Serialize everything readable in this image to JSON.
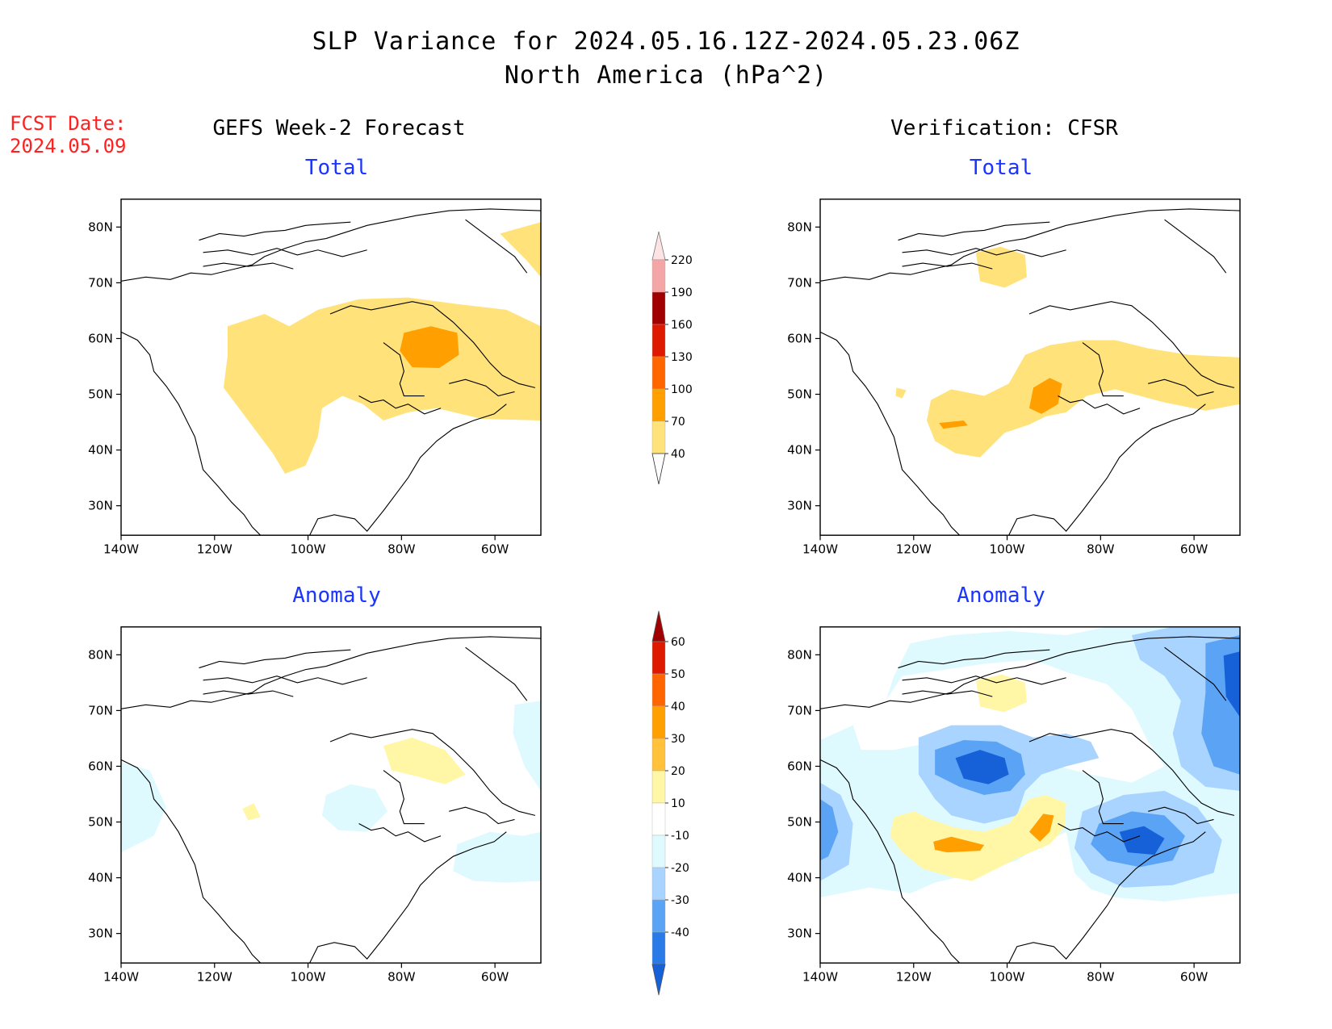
{
  "title": {
    "line1": "SLP Variance for 2024.05.16.12Z-2024.05.23.06Z",
    "line2": "North America (hPa^2)"
  },
  "fcst_date": {
    "label": "FCST Date:",
    "value": "2024.05.09"
  },
  "columns": {
    "left": "GEFS Week-2 Forecast",
    "right": "Verification: CFSR"
  },
  "panels": [
    {
      "id": "gefs-total",
      "heading": "Total"
    },
    {
      "id": "cfsr-total",
      "heading": "Total"
    },
    {
      "id": "gefs-anomaly",
      "heading": "Anomaly"
    },
    {
      "id": "cfsr-anomaly",
      "heading": "Anomaly"
    }
  ],
  "axes": {
    "lat_labels": [
      "80N",
      "70N",
      "60N",
      "50N",
      "40N",
      "30N"
    ],
    "lon_labels": [
      "140W",
      "120W",
      "100W",
      "80W",
      "60W"
    ]
  },
  "colorbars": {
    "total": {
      "labels": [
        "220",
        "190",
        "160",
        "130",
        "100",
        "70",
        "40"
      ],
      "colors": [
        "#fde3e3",
        "#f4a5a5",
        "#a00000",
        "#dd1a00",
        "#ff6600",
        "#ff9f00",
        "#ffe27a"
      ]
    },
    "anomaly": {
      "labels": [
        "60",
        "50",
        "40",
        "30",
        "20",
        "10",
        "-10",
        "-20",
        "-30",
        "-40"
      ],
      "colors": [
        "#a00000",
        "#dd1a00",
        "#ff6600",
        "#ff9f00",
        "#ffc23a",
        "#fff6a6",
        "#ffffff",
        "#dffaff",
        "#a8d4ff",
        "#5aa3f5",
        "#2a7be8",
        "#1660d8"
      ]
    }
  },
  "map_colors": {
    "yellow": "#ffe27a",
    "light_yellow": "#fff6a6",
    "orange": "#ff9f00",
    "light_cyan": "#dffaff",
    "light_blue": "#a8d4ff",
    "mid_blue": "#5aa3f5",
    "dark_blue": "#1660d8"
  }
}
